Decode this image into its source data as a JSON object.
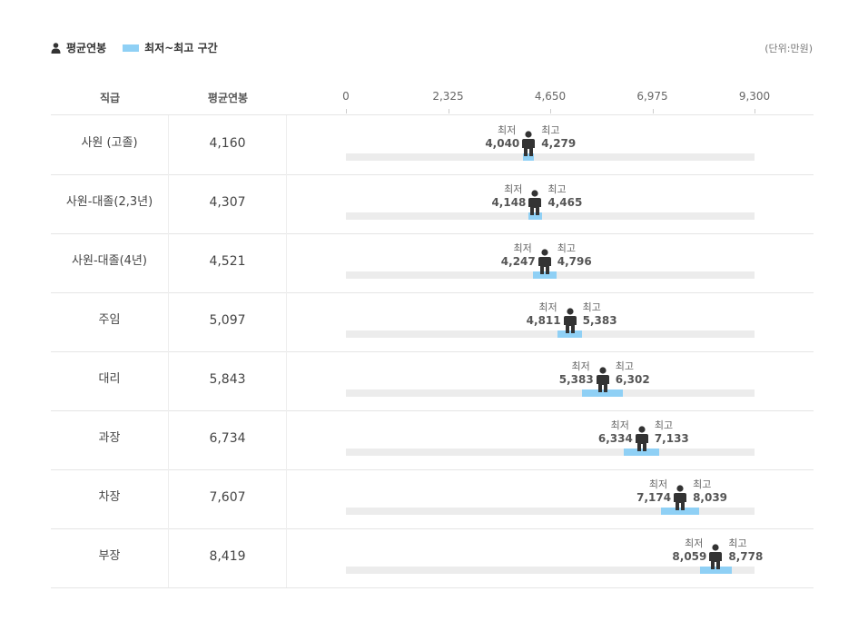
{
  "legend": {
    "avg_label": "평균연봉",
    "range_label": "최저~최고 구간"
  },
  "unit_label": "(단위:만원)",
  "header": {
    "col_rank": "직급",
    "col_avg": "평균연봉"
  },
  "labels": {
    "min": "최저",
    "max": "최고"
  },
  "colors": {
    "range": "#8fd0f5",
    "track": "#ececec",
    "person": "#333333"
  },
  "chart_data": {
    "type": "bar",
    "xlim": [
      0,
      9300
    ],
    "ticks": [
      "0",
      "2,325",
      "4,650",
      "6,975",
      "9,300"
    ],
    "tick_values": [
      0,
      2325,
      4650,
      6975,
      9300
    ],
    "rows": [
      {
        "rank": "사원 (고졸)",
        "avg": 4160,
        "avg_text": "4,160",
        "min": 4040,
        "min_text": "4,040",
        "max": 4279,
        "max_text": "4,279"
      },
      {
        "rank": "사원-대졸(2,3년)",
        "avg": 4307,
        "avg_text": "4,307",
        "min": 4148,
        "min_text": "4,148",
        "max": 4465,
        "max_text": "4,465"
      },
      {
        "rank": "사원-대졸(4년)",
        "avg": 4521,
        "avg_text": "4,521",
        "min": 4247,
        "min_text": "4,247",
        "max": 4796,
        "max_text": "4,796"
      },
      {
        "rank": "주임",
        "avg": 5097,
        "avg_text": "5,097",
        "min": 4811,
        "min_text": "4,811",
        "max": 5383,
        "max_text": "5,383"
      },
      {
        "rank": "대리",
        "avg": 5843,
        "avg_text": "5,843",
        "min": 5383,
        "min_text": "5,383",
        "max": 6302,
        "max_text": "6,302"
      },
      {
        "rank": "과장",
        "avg": 6734,
        "avg_text": "6,734",
        "min": 6334,
        "min_text": "6,334",
        "max": 7133,
        "max_text": "7,133"
      },
      {
        "rank": "차장",
        "avg": 7607,
        "avg_text": "7,607",
        "min": 7174,
        "min_text": "7,174",
        "max": 8039,
        "max_text": "8,039"
      },
      {
        "rank": "부장",
        "avg": 8419,
        "avg_text": "8,419",
        "min": 8059,
        "min_text": "8,059",
        "max": 8778,
        "max_text": "8,778"
      }
    ]
  }
}
